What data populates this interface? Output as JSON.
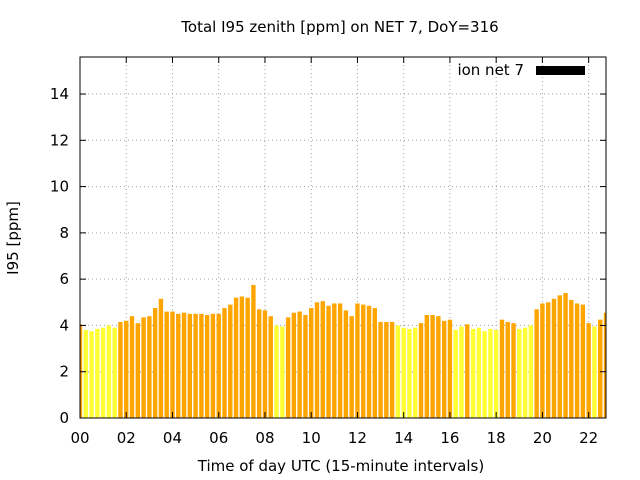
{
  "chart_data": {
    "type": "bar",
    "title": "Total I95 zenith [ppm] on NET 7, DoY=316",
    "xlabel": "Time of day UTC (15-minute intervals)",
    "ylabel": "I95 [ppm]",
    "xlim": [
      0,
      22.75
    ],
    "ylim": [
      0,
      15.6
    ],
    "xticks": [
      "00",
      "02",
      "04",
      "06",
      "08",
      "10",
      "12",
      "14",
      "16",
      "18",
      "20",
      "22"
    ],
    "xtick_values": [
      0,
      2,
      4,
      6,
      8,
      10,
      12,
      14,
      16,
      18,
      20,
      22
    ],
    "yticks": [
      "0",
      "2",
      "4",
      "6",
      "8",
      "10",
      "12",
      "14"
    ],
    "ytick_values": [
      0,
      2,
      4,
      6,
      8,
      10,
      12,
      14
    ],
    "grid": true,
    "legend": {
      "position": "top-right",
      "label": "ion net 7",
      "color": "#000000"
    },
    "colors": {
      "high": "#ffa500",
      "low": "#ffff33"
    },
    "threshold": 4,
    "bar_interval_hours": 0.25,
    "values": [
      4.05,
      3.8,
      3.75,
      3.85,
      3.9,
      4.0,
      3.9,
      4.15,
      4.2,
      4.4,
      4.1,
      4.35,
      4.4,
      4.75,
      5.15,
      4.6,
      4.6,
      4.5,
      4.55,
      4.5,
      4.5,
      4.5,
      4.45,
      4.5,
      4.5,
      4.75,
      4.9,
      5.2,
      5.25,
      5.2,
      5.75,
      4.7,
      4.65,
      4.4,
      4.0,
      3.95,
      4.35,
      4.55,
      4.6,
      4.45,
      4.75,
      5.0,
      5.05,
      4.85,
      4.95,
      4.95,
      4.65,
      4.4,
      4.95,
      4.9,
      4.85,
      4.75,
      4.15,
      4.15,
      4.15,
      4.0,
      3.9,
      3.85,
      3.9,
      4.1,
      4.45,
      4.45,
      4.4,
      4.2,
      4.25,
      3.8,
      3.95,
      4.05,
      3.85,
      3.9,
      3.75,
      3.85,
      3.8,
      4.25,
      4.15,
      4.1,
      3.85,
      3.9,
      4.0,
      4.7,
      4.95,
      5.0,
      5.15,
      5.3,
      5.4,
      5.1,
      4.95,
      4.9,
      4.1,
      3.95,
      4.25,
      4.55
    ]
  }
}
